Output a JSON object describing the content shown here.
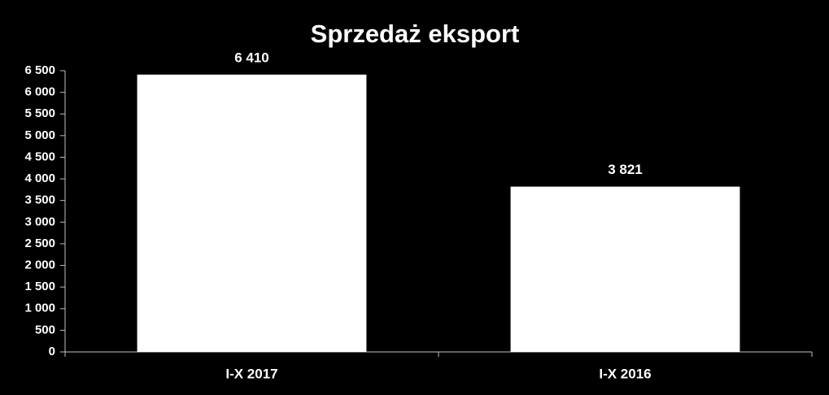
{
  "chart_data": {
    "type": "bar",
    "title": "Sprzedaż eksport",
    "categories": [
      "I-X 2017",
      "I-X 2016"
    ],
    "values": [
      6410,
      3821
    ],
    "value_labels": [
      "6 410",
      "3 821"
    ],
    "color": "#ffffff",
    "ylim": [
      0,
      6500
    ],
    "yticks": [
      0,
      500,
      {
        "value": 1000,
        "label": "1 000"
      },
      {
        "value": 1500,
        "label": "1 500"
      },
      {
        "value": 2000,
        "label": "2 000"
      },
      {
        "value": 2500,
        "label": "2 500"
      },
      {
        "value": 3000,
        "label": "3 000"
      },
      {
        "value": 3500,
        "label": "3 500"
      },
      {
        "value": 4000,
        "label": "4 000"
      },
      {
        "value": 4500,
        "label": "4 500"
      },
      {
        "value": 5000,
        "label": "5 000"
      },
      {
        "value": 5500,
        "label": "5 500"
      },
      {
        "value": 6000,
        "label": "6 000"
      },
      {
        "value": 6500,
        "label": "6 500"
      }
    ],
    "grid": false
  }
}
